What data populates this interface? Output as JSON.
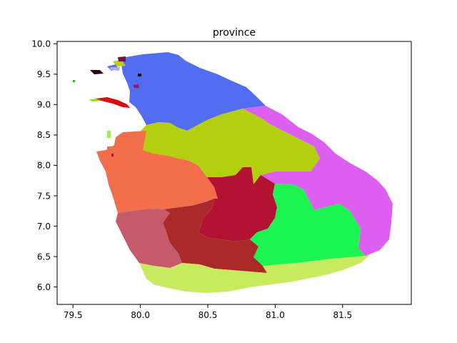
{
  "title": "province",
  "x_ticks": [
    "79.5",
    "80.0",
    "80.5",
    "81.0",
    "81.5"
  ],
  "y_ticks": [
    "10.0",
    "9.5",
    "9.0",
    "8.5",
    "8.0",
    "7.5",
    "7.0",
    "6.5",
    "6.0"
  ],
  "chart_data": {
    "type": "map",
    "title": "province",
    "xlim": [
      79.42,
      81.98
    ],
    "ylim": [
      5.73,
      10.06
    ],
    "x_ticks": [
      79.5,
      80.0,
      80.5,
      81.0,
      81.5
    ],
    "y_ticks": [
      6.0,
      6.5,
      7.0,
      7.5,
      8.0,
      8.5,
      9.0,
      9.5,
      10.0
    ],
    "grid": false,
    "regions": [
      {
        "color": "#526df0"
      },
      {
        "color": "#dd5ff0"
      },
      {
        "color": "#b4cf0e"
      },
      {
        "color": "#f26d4a"
      },
      {
        "color": "#b31232"
      },
      {
        "color": "#1bf552"
      },
      {
        "color": "#c65a6a"
      },
      {
        "color": "#aa2a2a"
      },
      {
        "color": "#c8ea5e"
      },
      {
        "color": "#dd0a0a"
      }
    ]
  }
}
